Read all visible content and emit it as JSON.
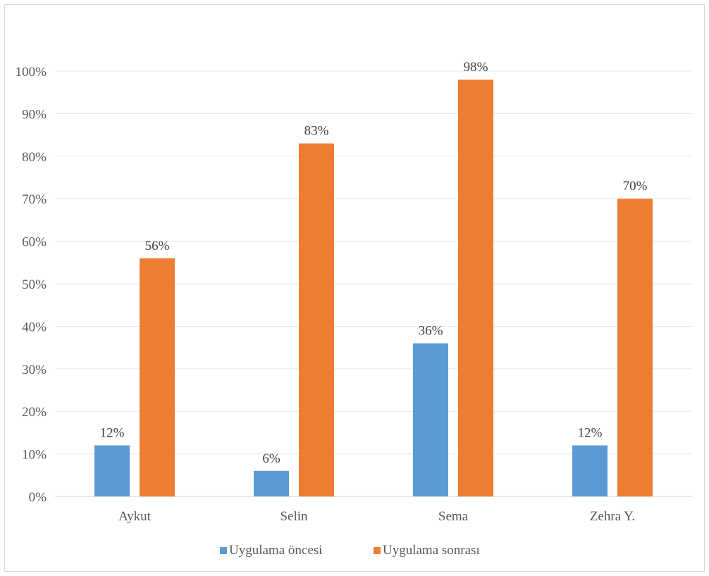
{
  "colors": {
    "series_before": "#5B9BD5",
    "series_after": "#ED7D31",
    "grid": "#e6e6e6",
    "axis": "#d0d0d0",
    "text": "#595959"
  },
  "chart_data": {
    "type": "bar",
    "title": "",
    "xlabel": "",
    "ylabel": "",
    "ylim": [
      0,
      100
    ],
    "y_ticks": [
      0,
      10,
      20,
      30,
      40,
      50,
      60,
      70,
      80,
      90,
      100
    ],
    "y_tick_labels": [
      "0%",
      "10%",
      "20%",
      "30%",
      "40%",
      "50%",
      "60%",
      "70%",
      "80%",
      "90%",
      "100%"
    ],
    "grid": true,
    "legend_position": "bottom",
    "categories": [
      "Aykut",
      "Selin",
      "Sema",
      "Zehra Y."
    ],
    "series": [
      {
        "name": "Uygulama öncesi",
        "values": [
          12,
          6,
          36,
          12
        ],
        "labels": [
          "12%",
          "6%",
          "36%",
          "12%"
        ],
        "color": "#5B9BD5"
      },
      {
        "name": "Uygulama sonrası",
        "values": [
          56,
          83,
          98,
          70
        ],
        "labels": [
          "56%",
          "83%",
          "98%",
          "70%"
        ],
        "color": "#ED7D31"
      }
    ]
  }
}
